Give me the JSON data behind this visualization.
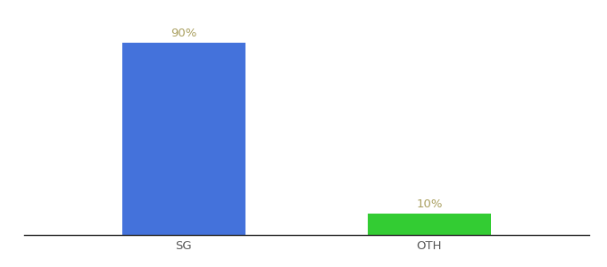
{
  "categories": [
    "SG",
    "OTH"
  ],
  "values": [
    90,
    10
  ],
  "bar_colors": [
    "#4472db",
    "#33cc33"
  ],
  "labels": [
    "90%",
    "10%"
  ],
  "background_color": "#ffffff",
  "ylim": [
    0,
    100
  ],
  "bar_width": 0.5,
  "label_fontsize": 9.5,
  "tick_fontsize": 9.5,
  "tick_color": "#555555",
  "label_color": "#aaa060",
  "spine_color": "#222222",
  "spine_linewidth": 1.0
}
